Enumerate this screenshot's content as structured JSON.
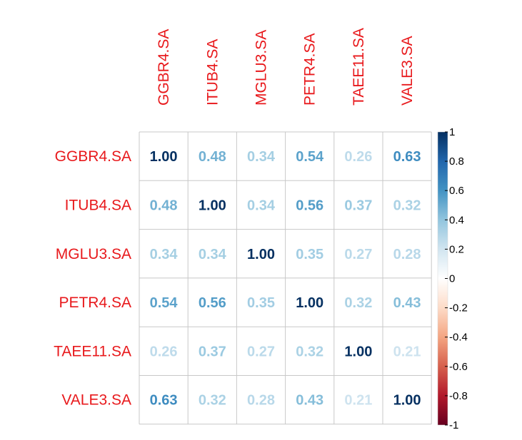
{
  "chart_data": {
    "type": "heatmap",
    "title": "",
    "xlabel": "",
    "ylabel": "",
    "rows": [
      "GGBR4.SA",
      "ITUB4.SA",
      "MGLU3.SA",
      "PETR4.SA",
      "TAEE11.SA",
      "VALE3.SA"
    ],
    "columns": [
      "GGBR4.SA",
      "ITUB4.SA",
      "MGLU3.SA",
      "PETR4.SA",
      "TAEE11.SA",
      "VALE3.SA"
    ],
    "values": [
      [
        1.0,
        0.48,
        0.34,
        0.54,
        0.26,
        0.63
      ],
      [
        0.48,
        1.0,
        0.34,
        0.56,
        0.37,
        0.32
      ],
      [
        0.34,
        0.34,
        1.0,
        0.35,
        0.27,
        0.28
      ],
      [
        0.54,
        0.56,
        0.35,
        1.0,
        0.32,
        0.43
      ],
      [
        0.26,
        0.37,
        0.27,
        0.32,
        1.0,
        0.21
      ],
      [
        0.63,
        0.32,
        0.28,
        0.43,
        0.21,
        1.0
      ]
    ],
    "value_range": [
      -1,
      1
    ],
    "colorbar": {
      "ticks": [
        "1",
        "0.8",
        "0.6",
        "0.4",
        "0.2",
        "0",
        "-0.2",
        "-0.4",
        "-0.6",
        "-0.8",
        "-1"
      ],
      "tick_values": [
        1,
        0.8,
        0.6,
        0.4,
        0.2,
        0,
        -0.2,
        -0.4,
        -0.6,
        -0.8,
        -1
      ],
      "placement": "right"
    },
    "label_color": "#e8191c",
    "grid": true
  }
}
